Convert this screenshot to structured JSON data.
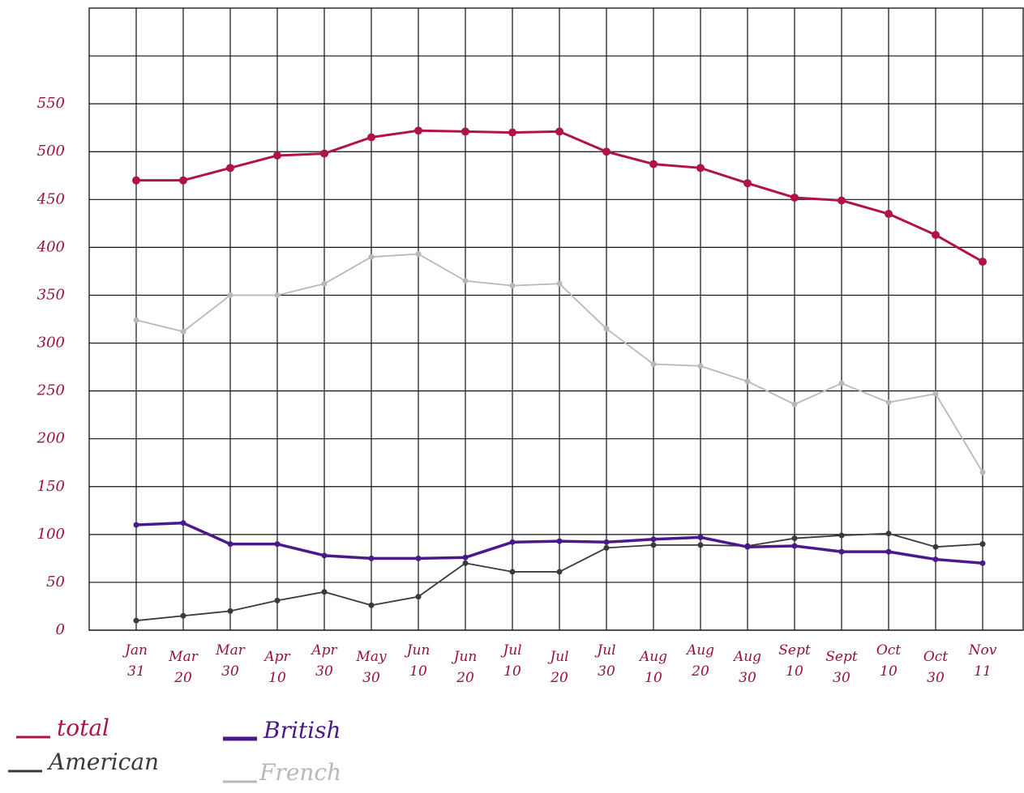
{
  "chart_data": {
    "type": "line",
    "categories": [
      "Jan 31",
      "Mar 20",
      "Mar 30",
      "Apr 10",
      "Apr 30",
      "May 30",
      "Jun 10",
      "Jun 20",
      "Jul 10",
      "Jul 20",
      "Jul 30",
      "Aug 10",
      "Aug 20",
      "Aug 30",
      "Sept 10",
      "Sept 30",
      "Oct 10",
      "Oct 30",
      "Nov 11"
    ],
    "series": [
      {
        "name": "total",
        "color": "#b0134a",
        "values": [
          470,
          470,
          483,
          496,
          498,
          515,
          522,
          521,
          520,
          521,
          500,
          487,
          483,
          467,
          452,
          449,
          435,
          413,
          385
        ]
      },
      {
        "name": "British",
        "color": "#4b1a8a",
        "values": [
          110,
          112,
          90,
          90,
          78,
          75,
          75,
          76,
          92,
          93,
          92,
          95,
          97,
          87,
          88,
          82,
          82,
          74,
          70
        ]
      },
      {
        "name": "American",
        "color": "#3a3a3a",
        "values": [
          10,
          15,
          20,
          31,
          40,
          26,
          35,
          70,
          61,
          61,
          86,
          89,
          89,
          88,
          96,
          99,
          101,
          87,
          90
        ]
      },
      {
        "name": "French",
        "color": "#b8b8b8",
        "values": [
          324,
          312,
          350,
          350,
          362,
          390,
          393,
          365,
          360,
          362,
          315,
          278,
          276,
          260,
          236,
          258,
          238,
          247,
          165
        ]
      }
    ],
    "ylim": [
      0,
      650
    ],
    "yticks": [
      0,
      50,
      100,
      150,
      200,
      250,
      300,
      350,
      400,
      450,
      500,
      550
    ],
    "grid": true,
    "legend": "bottom-left"
  }
}
